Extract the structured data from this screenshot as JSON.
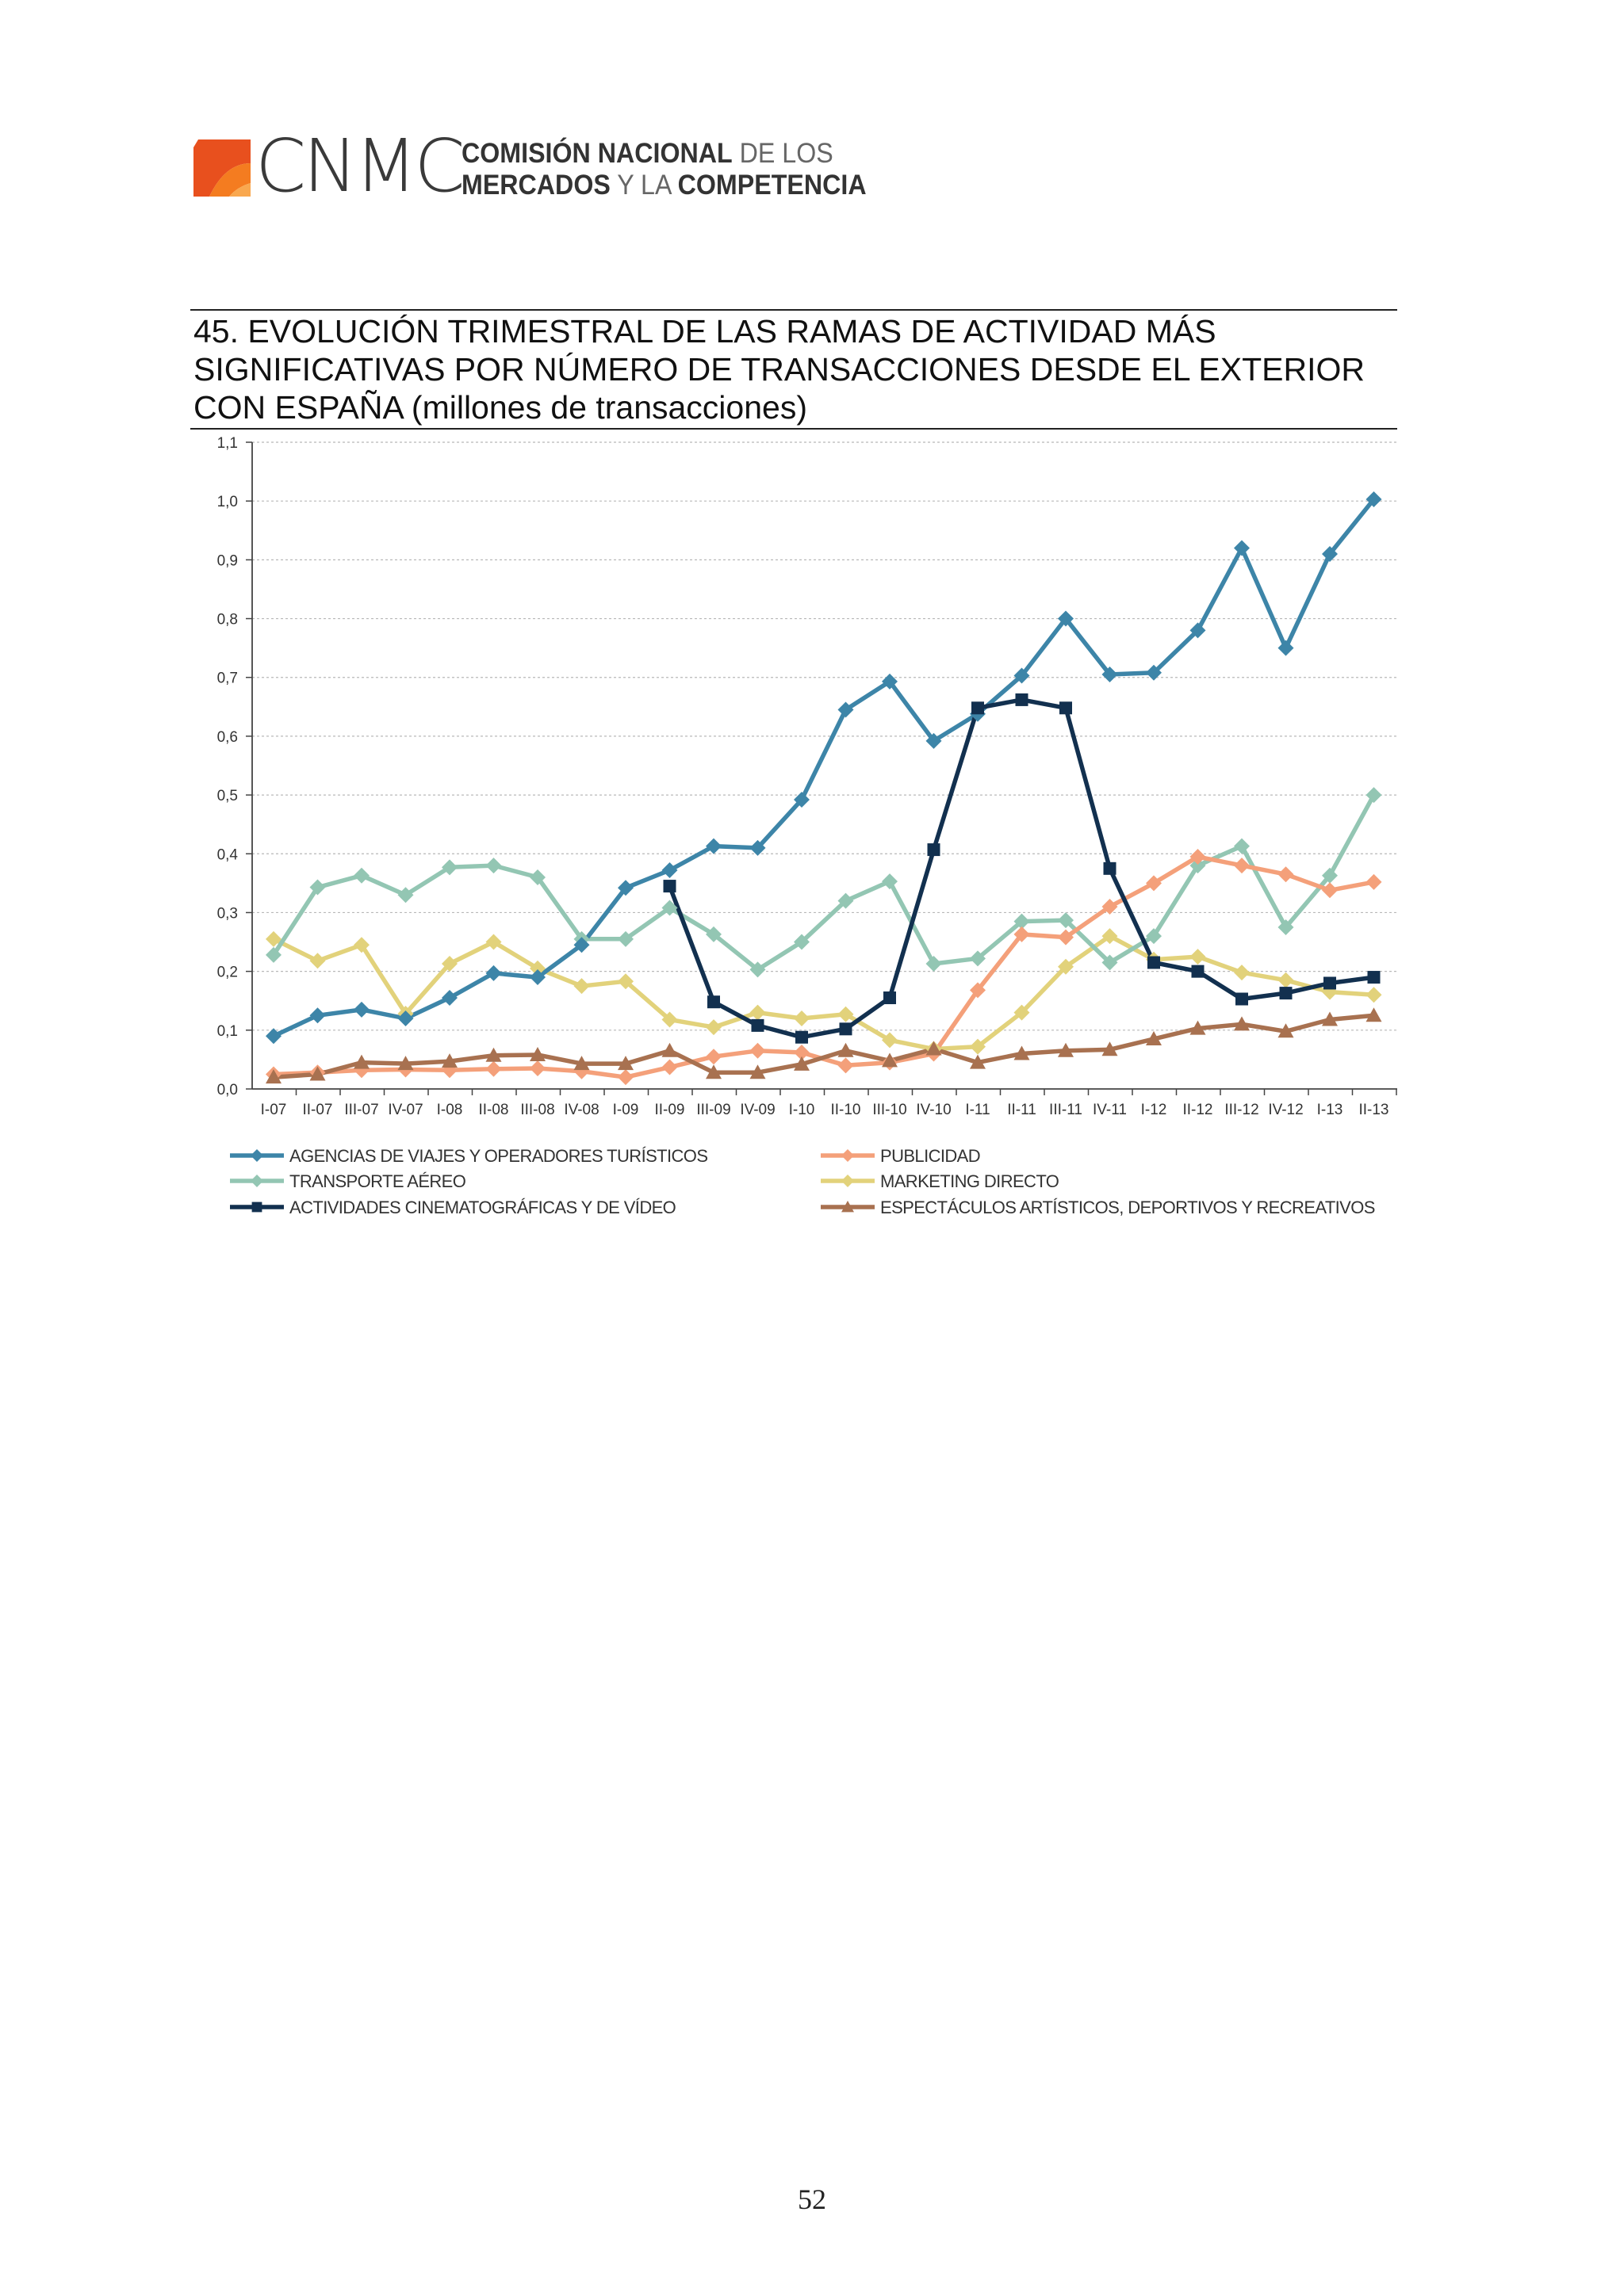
{
  "header": {
    "logo_acronym": "CNMC",
    "logo_line1_bold": "COMISIÓN NACIONAL",
    "logo_line1_light": "DE LOS",
    "logo_line2_bold_a": "MERCADOS",
    "logo_line2_light": "Y LA",
    "logo_line2_bold_b": "COMPETENCIA",
    "logo_colors": [
      "#e8501e",
      "#f47c20",
      "#f9a84f"
    ]
  },
  "chart_data": {
    "type": "line",
    "title": "45. EVOLUCIÓN TRIMESTRAL DE LAS RAMAS DE ACTIVIDAD MÁS SIGNIFICATIVAS POR NÚMERO DE TRANSACCIONES DESDE EL EXTERIOR CON ESPAÑA (millones de transacciones)",
    "categories": [
      "I-07",
      "II-07",
      "III-07",
      "IV-07",
      "I-08",
      "II-08",
      "III-08",
      "IV-08",
      "I-09",
      "II-09",
      "III-09",
      "IV-09",
      "I-10",
      "II-10",
      "III-10",
      "IV-10",
      "I-11",
      "II-11",
      "III-11",
      "IV-11",
      "I-12",
      "II-12",
      "III-12",
      "IV-12",
      "I-13",
      "II-13"
    ],
    "ylim": [
      0,
      1.1
    ],
    "yticks": [
      "0,0",
      "0,1",
      "0,2",
      "0,3",
      "0,4",
      "0,5",
      "0,6",
      "0,7",
      "0,8",
      "0,9",
      "1,0",
      "1,1"
    ],
    "grid": true,
    "legend_position": "bottom",
    "series": [
      {
        "name": "AGENCIAS DE VIAJES Y OPERADORES TURÍSTICOS",
        "color": "#3d85a8",
        "marker": "diamond",
        "values": [
          0.09,
          0.125,
          0.135,
          0.12,
          0.155,
          0.197,
          0.19,
          0.245,
          0.342,
          0.372,
          0.413,
          0.41,
          0.492,
          0.645,
          0.693,
          0.592,
          0.638,
          0.703,
          0.8,
          0.705,
          0.708,
          0.78,
          0.92,
          0.75,
          0.91,
          1.003
        ]
      },
      {
        "name": "PUBLICIDAD",
        "color": "#f4a07a",
        "marker": "diamond",
        "values": [
          0.025,
          0.028,
          0.032,
          0.033,
          0.032,
          0.034,
          0.035,
          0.03,
          0.02,
          0.037,
          0.055,
          0.065,
          0.062,
          0.04,
          0.045,
          0.06,
          0.168,
          0.263,
          0.258,
          0.31,
          0.35,
          0.395,
          0.38,
          0.365,
          0.338,
          0.352
        ]
      },
      {
        "name": "TRANSPORTE AÉREO",
        "color": "#93c6b3",
        "marker": "diamond",
        "values": [
          0.228,
          0.343,
          0.363,
          0.33,
          0.377,
          0.38,
          0.36,
          0.255,
          0.255,
          0.308,
          0.263,
          0.203,
          0.25,
          0.32,
          0.353,
          0.213,
          0.222,
          0.285,
          0.287,
          0.215,
          0.26,
          0.38,
          0.413,
          0.275,
          0.363,
          0.5
        ]
      },
      {
        "name": "MARKETING DIRECTO",
        "color": "#e2d27b",
        "marker": "diamond",
        "values": [
          0.255,
          0.218,
          0.245,
          0.128,
          0.213,
          0.25,
          0.205,
          0.175,
          0.183,
          0.118,
          0.105,
          0.13,
          0.12,
          0.127,
          0.083,
          0.068,
          0.072,
          0.13,
          0.208,
          0.26,
          0.22,
          0.225,
          0.198,
          0.185,
          0.165,
          0.16
        ]
      },
      {
        "name": "ACTIVIDADES CINEMATOGRÁFICAS Y DE VÍDEO",
        "color": "#12304f",
        "marker": "square",
        "values": [
          null,
          null,
          null,
          null,
          null,
          null,
          null,
          null,
          null,
          0.345,
          0.148,
          0.108,
          0.088,
          0.102,
          0.155,
          0.407,
          0.648,
          0.662,
          0.648,
          0.375,
          0.215,
          0.2,
          0.153,
          0.163,
          0.18,
          0.19
        ]
      },
      {
        "name": "ESPECTÁCULOS ARTÍSTICOS, DEPORTIVOS Y RECREATIVOS",
        "color": "#a87150",
        "marker": "triangle",
        "values": [
          0.02,
          0.025,
          0.045,
          0.043,
          0.047,
          0.057,
          0.058,
          0.043,
          0.043,
          0.065,
          0.028,
          0.028,
          0.042,
          0.065,
          0.048,
          0.068,
          0.045,
          0.06,
          0.065,
          0.067,
          0.085,
          0.103,
          0.11,
          0.098,
          0.118,
          0.125
        ]
      }
    ]
  },
  "page": {
    "number": "52"
  }
}
